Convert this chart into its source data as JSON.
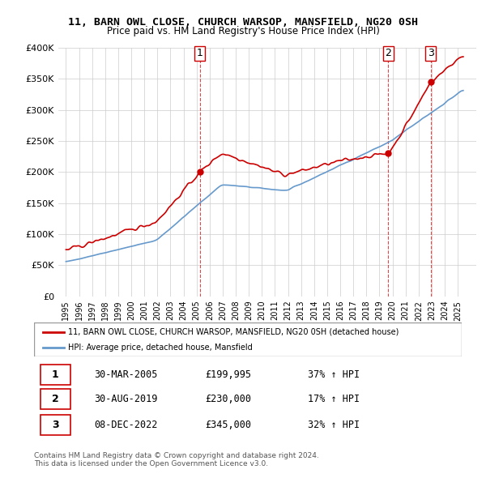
{
  "title": "11, BARN OWL CLOSE, CHURCH WARSOP, MANSFIELD, NG20 0SH",
  "subtitle": "Price paid vs. HM Land Registry's House Price Index (HPI)",
  "xlabel": "",
  "ylabel": "",
  "ylim": [
    0,
    400000
  ],
  "yticks": [
    0,
    50000,
    100000,
    150000,
    200000,
    250000,
    300000,
    350000,
    400000
  ],
  "ytick_labels": [
    "£0",
    "£50K",
    "£100K",
    "£150K",
    "£200K",
    "£250K",
    "£300K",
    "£350K",
    "£400K"
  ],
  "sale_dates": [
    "2005-03-30",
    "2019-08-30",
    "2022-12-08"
  ],
  "sale_prices": [
    199995,
    230000,
    345000
  ],
  "sale_labels": [
    "1",
    "2",
    "3"
  ],
  "legend_line1": "11, BARN OWL CLOSE, CHURCH WARSOP, MANSFIELD, NG20 0SH (detached house)",
  "legend_line2": "HPI: Average price, detached house, Mansfield",
  "table_rows": [
    [
      "1",
      "30-MAR-2005",
      "£199,995",
      "37% ↑ HPI"
    ],
    [
      "2",
      "30-AUG-2019",
      "£230,000",
      "17% ↑ HPI"
    ],
    [
      "3",
      "08-DEC-2022",
      "£345,000",
      "32% ↑ HPI"
    ]
  ],
  "footer": "Contains HM Land Registry data © Crown copyright and database right 2024.\nThis data is licensed under the Open Government Licence v3.0.",
  "red_color": "#cc0000",
  "blue_color": "#6699cc",
  "background_color": "#ffffff",
  "grid_color": "#cccccc"
}
